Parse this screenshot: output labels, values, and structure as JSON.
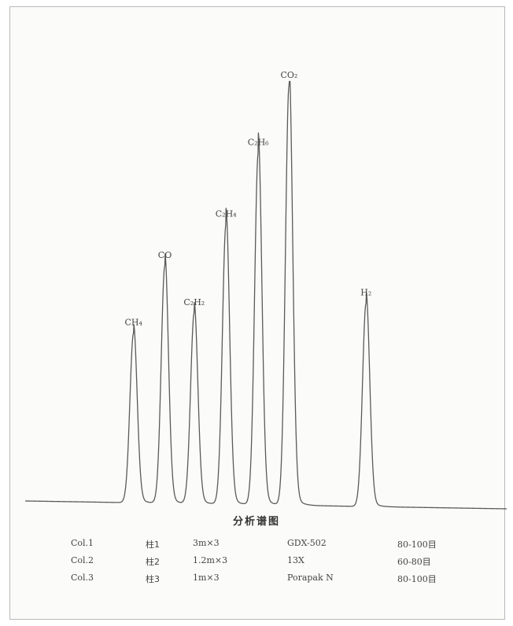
{
  "chart_data": {
    "type": "line",
    "title": "分析谱图",
    "xlabel": "",
    "ylabel": "",
    "grid": false,
    "legend": "none",
    "peaks": [
      {
        "label": "CH₄",
        "x": 0.225,
        "height": 0.4
      },
      {
        "label": "CO",
        "x": 0.29,
        "height": 0.56
      },
      {
        "label": "C₂H₂",
        "x": 0.351,
        "height": 0.45
      },
      {
        "label": "C₂H₄",
        "x": 0.417,
        "height": 0.66
      },
      {
        "label": "C₂H₆",
        "x": 0.484,
        "height": 0.83
      },
      {
        "label": "CO₂",
        "x": 0.548,
        "height": 0.99
      },
      {
        "label": "H₂",
        "x": 0.708,
        "height": 0.48
      }
    ]
  },
  "columns": [
    {
      "name": "Col.1",
      "cn": "柱1",
      "size": "3m×3",
      "phase": "GDX-502",
      "mesh": "80-100目"
    },
    {
      "name": "Col.2",
      "cn": "柱2",
      "size": "1.2m×3",
      "phase": "13X",
      "mesh": "60-80目"
    },
    {
      "name": "Col.3",
      "cn": "柱3",
      "size": "1m×3",
      "phase": "Porapak N",
      "mesh": "80-100目"
    }
  ]
}
